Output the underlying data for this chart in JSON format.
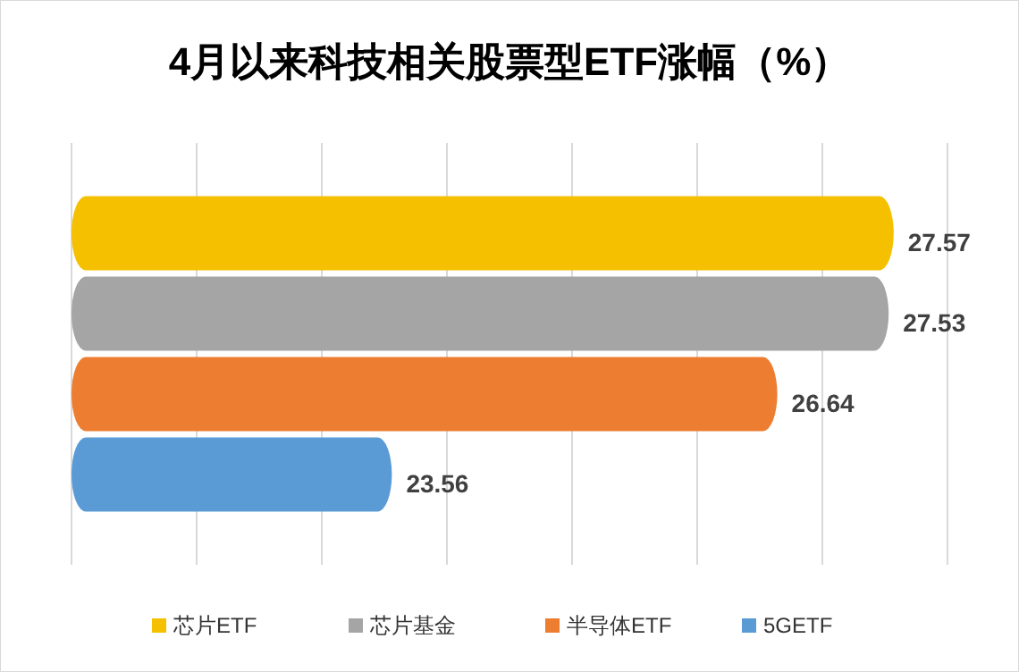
{
  "chart_data": {
    "type": "bar",
    "orientation": "horizontal",
    "title": "4月以来科技相关股票型ETF涨幅（%）",
    "categories": [
      null
    ],
    "series": [
      {
        "name": "芯片ETF",
        "color": "#f5c000",
        "values": [
          27.57
        ]
      },
      {
        "name": "芯片基金",
        "color": "#a5a5a5",
        "values": [
          27.53
        ]
      },
      {
        "name": "半导体ETF",
        "color": "#ed7d31",
        "values": [
          26.64
        ]
      },
      {
        "name": "5GETF",
        "color": "#5b9bd5",
        "values": [
          23.56
        ]
      }
    ],
    "xlim": [
      21,
      28
    ],
    "xticks": [
      {
        "value": 21,
        "label": null
      },
      {
        "value": 22,
        "label": null
      },
      {
        "value": 23,
        "label": null
      },
      {
        "value": 24,
        "label": null
      },
      {
        "value": 25,
        "label": null
      },
      {
        "value": 26,
        "label": null
      },
      {
        "value": 27,
        "label": null
      },
      {
        "value": 28,
        "label": null
      }
    ],
    "grid": "x",
    "data_labels": true,
    "legend": "bottom"
  }
}
